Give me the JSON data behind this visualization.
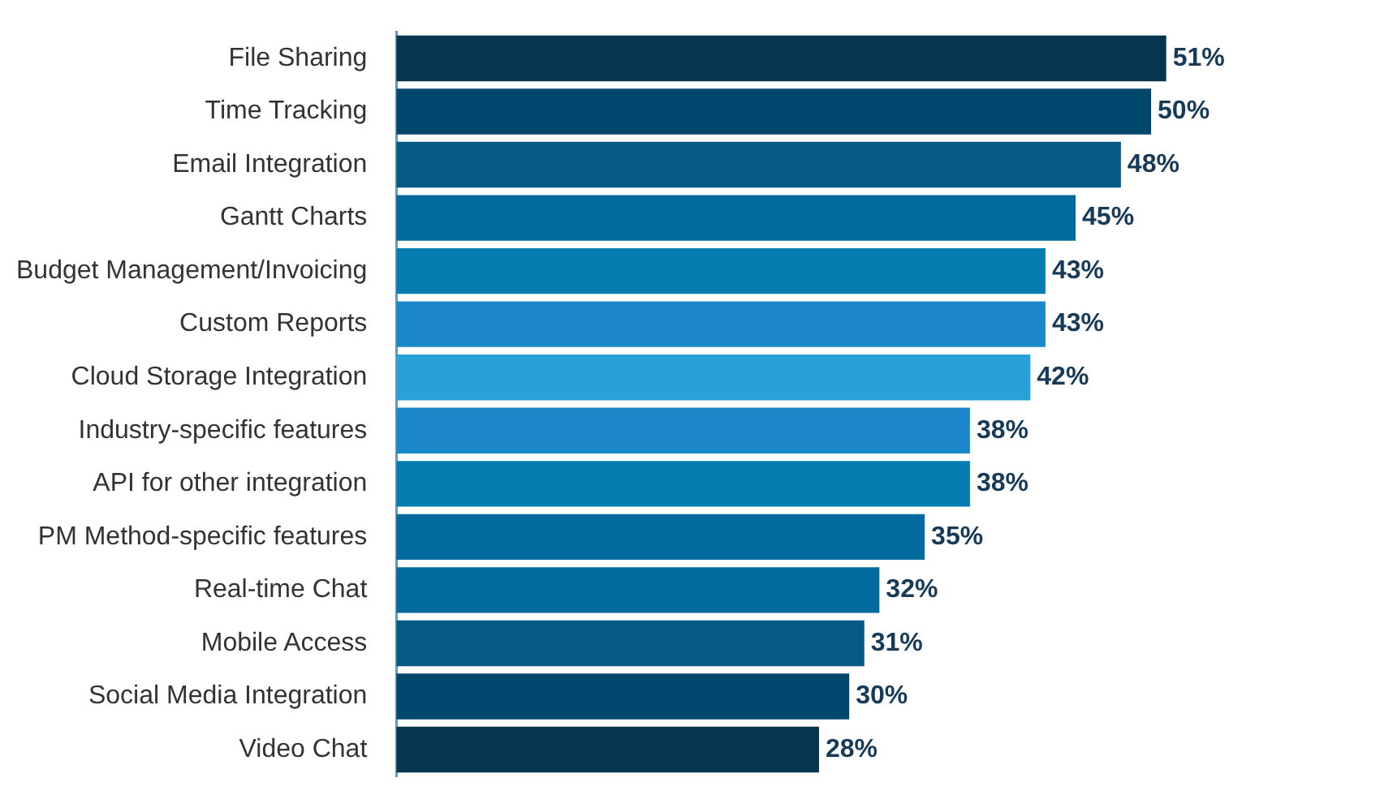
{
  "chart_data": {
    "type": "bar",
    "orientation": "horizontal",
    "categories": [
      "File Sharing",
      "Time Tracking",
      "Email Integration",
      "Gantt Charts",
      "Budget Management/Invoicing",
      "Custom Reports",
      "Cloud Storage Integration",
      "Industry-specific features",
      "API for other integration",
      "PM Method-specific features",
      "Real-time Chat",
      "Mobile Access",
      "Social Media Integration",
      "Video Chat"
    ],
    "values": [
      51,
      50,
      48,
      45,
      43,
      43,
      42,
      38,
      38,
      35,
      32,
      31,
      30,
      28
    ],
    "colors": [
      "#06354f",
      "#01466b",
      "#055a83",
      "#026a9d",
      "#067cb0",
      "#1a88c8",
      "#2aa0d8",
      "#1a88c8",
      "#067cb0",
      "#026a9d",
      "#026a9d",
      "#055a83",
      "#01466b",
      "#06354f"
    ],
    "value_labels": [
      "51%",
      "50%",
      "48%",
      "45%",
      "43%",
      "43%",
      "42%",
      "38%",
      "38%",
      "35%",
      "32%",
      "31%",
      "30%",
      "28%"
    ],
    "tick_labels": "y",
    "legend": false
  }
}
